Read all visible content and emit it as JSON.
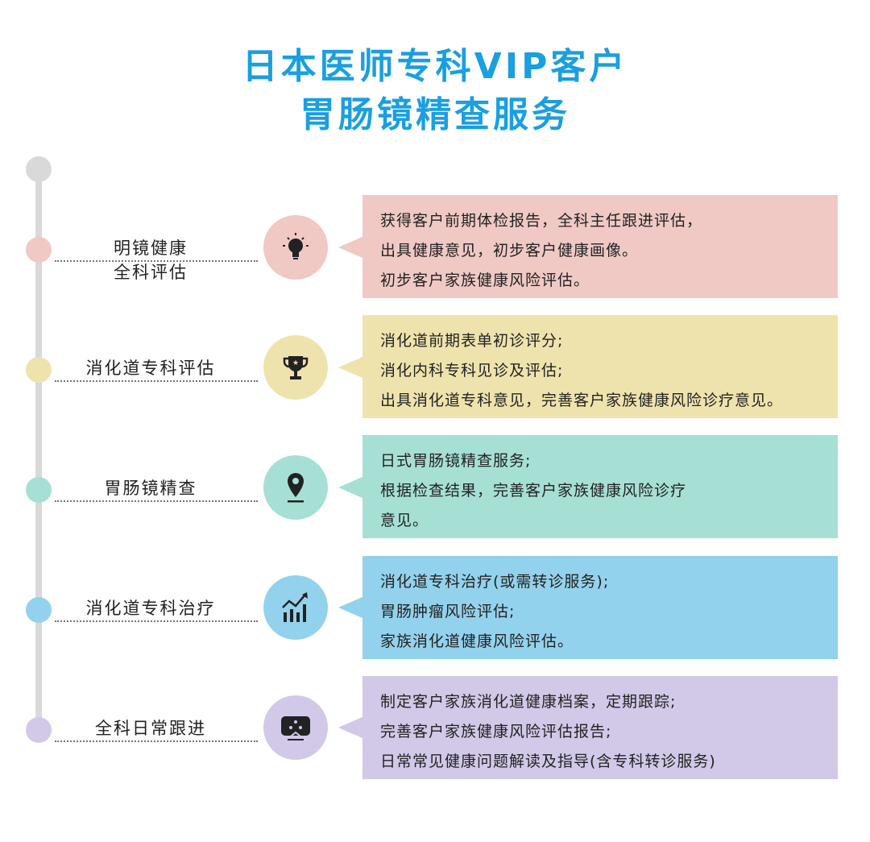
{
  "title": [
    "日本医师专科VIP客户",
    "胃肠镜精查服务"
  ],
  "colors": {
    "title": "#1a9fe0",
    "timeline": "#d9d9d9"
  },
  "steps": [
    {
      "label": [
        "明镜健康",
        "全科评估"
      ],
      "icon": "lightbulb-icon",
      "color": "#f0c9c4",
      "lines": [
        "获得客户前期体检报告，全科主任跟进评估，",
        "出具健康意见，初步客户健康画像。",
        "初步客户家族健康风险评估。"
      ]
    },
    {
      "label": [
        "消化道专科评估"
      ],
      "icon": "trophy-icon",
      "color": "#efe3ad",
      "lines": [
        "消化道前期表单初诊评分;",
        "消化内科专科见诊及评估;",
        "出具消化道专科意见，完善客户家族健康风险诊疗意见。"
      ]
    },
    {
      "label": [
        "胃肠镜精查"
      ],
      "icon": "location-pin-icon",
      "color": "#a6e0d5",
      "lines": [
        "日式胃肠镜精查服务;",
        "根据检查结果，完善客户家族健康风险诊疗",
        "意见。"
      ]
    },
    {
      "label": [
        "消化道专科治疗"
      ],
      "icon": "chart-growth-icon",
      "color": "#93d2ec",
      "lines": [
        "消化道专科治疗(或需转诊服务);",
        "胃肠肿瘤风险评估;",
        "家族消化道健康风险评估。"
      ]
    },
    {
      "label": [
        "全科日常跟进"
      ],
      "icon": "monitor-network-icon",
      "color": "#d2c8e8",
      "lines": [
        "制定客户家族消化道健康档案，定期跟踪;",
        "完善客户家族健康风险评估报告;",
        "日常常见健康问题解读及指导(含专科转诊服务)"
      ]
    }
  ]
}
